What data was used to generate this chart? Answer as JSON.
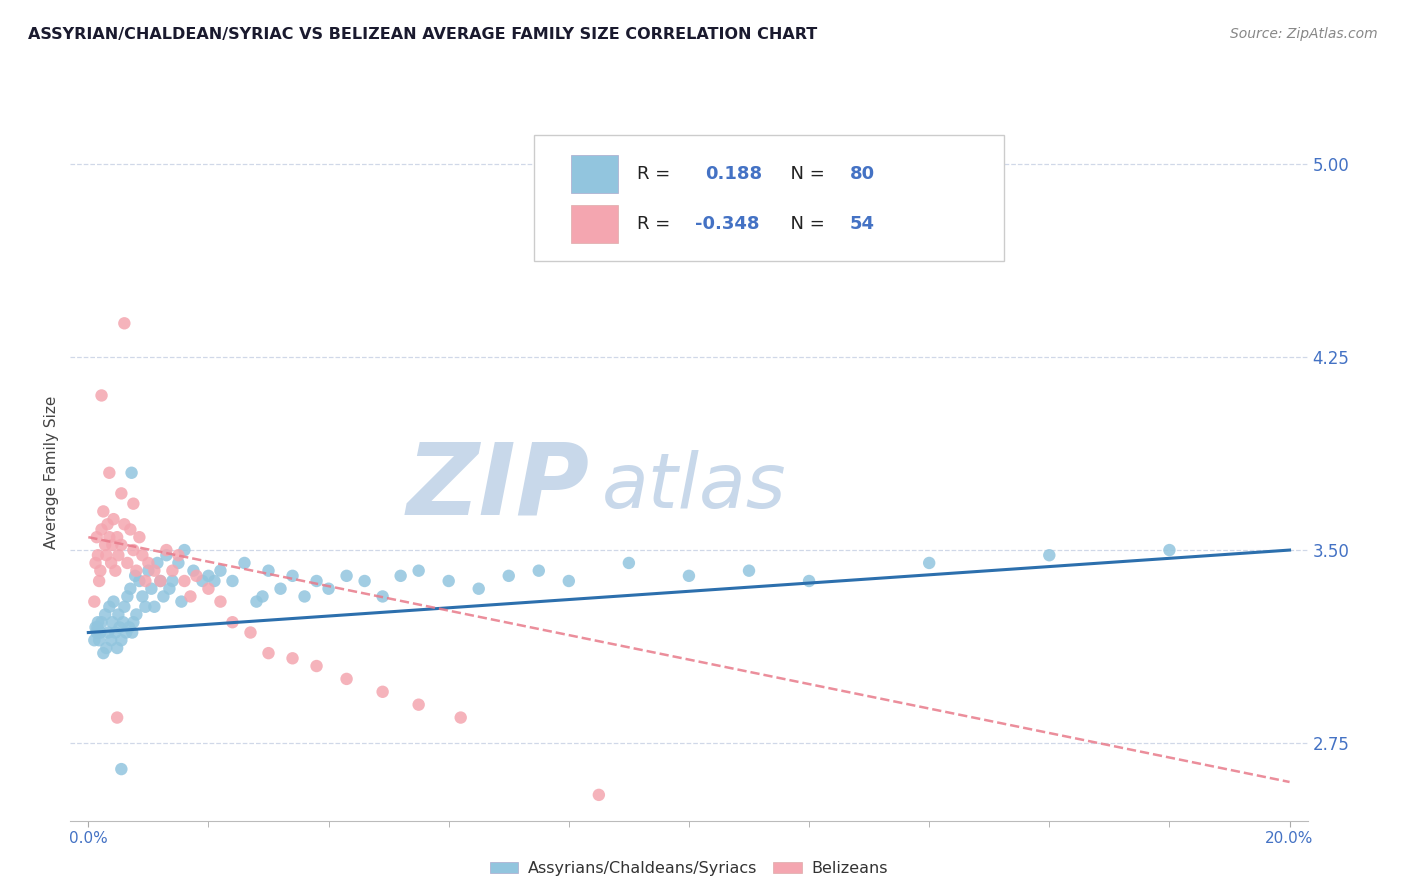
{
  "title": "ASSYRIAN/CHALDEAN/SYRIAC VS BELIZEAN AVERAGE FAMILY SIZE CORRELATION CHART",
  "source": "Source: ZipAtlas.com",
  "ylabel": "Average Family Size",
  "xlabel_ticks": [
    "0.0%",
    "20.0%"
  ],
  "xlabel_vals": [
    0.0,
    20.0
  ],
  "xlim": [
    -0.3,
    20.3
  ],
  "ylim": [
    2.45,
    5.15
  ],
  "yticks": [
    2.75,
    3.5,
    4.25,
    5.0
  ],
  "legend_blue_r": "0.188",
  "legend_blue_n": "80",
  "legend_pink_r": "-0.348",
  "legend_pink_n": "54",
  "legend_label_blue": "Assyrians/Chaldeans/Syriacs",
  "legend_label_pink": "Belizeans",
  "blue_color": "#92c5de",
  "pink_color": "#f4a6b0",
  "blue_line_color": "#2c6fad",
  "pink_line_color": "#e87a8a",
  "watermark_zip": "ZIP",
  "watermark_atlas": "atlas",
  "watermark_color": "#c8d8ea",
  "title_color": "#1a1a2e",
  "axis_tick_color": "#4472c4",
  "grid_color": "#d0d8e8",
  "blue_scatter_x": [
    0.15,
    0.18,
    0.2,
    0.22,
    0.25,
    0.28,
    0.3,
    0.33,
    0.35,
    0.38,
    0.4,
    0.42,
    0.45,
    0.48,
    0.5,
    0.52,
    0.55,
    0.58,
    0.6,
    0.63,
    0.65,
    0.68,
    0.7,
    0.73,
    0.75,
    0.78,
    0.8,
    0.85,
    0.9,
    0.95,
    1.0,
    1.05,
    1.1,
    1.15,
    1.2,
    1.25,
    1.3,
    1.4,
    1.5,
    1.6,
    1.75,
    1.9,
    2.0,
    2.2,
    2.4,
    2.6,
    2.8,
    3.0,
    3.2,
    3.4,
    3.6,
    3.8,
    4.0,
    4.3,
    4.6,
    4.9,
    5.2,
    5.5,
    6.0,
    6.5,
    7.0,
    7.5,
    8.0,
    9.0,
    10.0,
    11.0,
    12.0,
    14.0,
    16.0,
    18.0,
    0.1,
    0.12,
    0.14,
    0.16,
    1.35,
    1.55,
    2.1,
    2.9,
    0.72,
    0.55
  ],
  "blue_scatter_y": [
    3.2,
    3.15,
    3.18,
    3.22,
    3.1,
    3.25,
    3.12,
    3.18,
    3.28,
    3.15,
    3.22,
    3.3,
    3.18,
    3.12,
    3.25,
    3.2,
    3.15,
    3.22,
    3.28,
    3.18,
    3.32,
    3.2,
    3.35,
    3.18,
    3.22,
    3.4,
    3.25,
    3.38,
    3.32,
    3.28,
    3.42,
    3.35,
    3.28,
    3.45,
    3.38,
    3.32,
    3.48,
    3.38,
    3.45,
    3.5,
    3.42,
    3.38,
    3.4,
    3.42,
    3.38,
    3.45,
    3.3,
    3.42,
    3.35,
    3.4,
    3.32,
    3.38,
    3.35,
    3.4,
    3.38,
    3.32,
    3.4,
    3.42,
    3.38,
    3.35,
    3.4,
    3.42,
    3.38,
    3.45,
    3.4,
    3.42,
    3.38,
    3.45,
    3.48,
    3.5,
    3.15,
    3.2,
    3.18,
    3.22,
    3.35,
    3.3,
    3.38,
    3.32,
    3.8,
    2.65
  ],
  "pink_scatter_x": [
    0.1,
    0.12,
    0.14,
    0.16,
    0.18,
    0.2,
    0.22,
    0.25,
    0.28,
    0.3,
    0.32,
    0.35,
    0.38,
    0.4,
    0.42,
    0.45,
    0.48,
    0.5,
    0.55,
    0.6,
    0.65,
    0.7,
    0.75,
    0.8,
    0.85,
    0.9,
    0.95,
    1.0,
    1.1,
    1.2,
    1.3,
    1.4,
    1.5,
    1.6,
    1.7,
    1.8,
    2.0,
    2.2,
    2.4,
    2.7,
    3.0,
    3.4,
    3.8,
    4.3,
    4.9,
    5.5,
    6.2,
    0.35,
    0.55,
    0.75,
    0.22,
    0.6,
    0.48,
    8.5
  ],
  "pink_scatter_y": [
    3.3,
    3.45,
    3.55,
    3.48,
    3.38,
    3.42,
    3.58,
    3.65,
    3.52,
    3.48,
    3.6,
    3.55,
    3.45,
    3.52,
    3.62,
    3.42,
    3.55,
    3.48,
    3.52,
    3.6,
    3.45,
    3.58,
    3.5,
    3.42,
    3.55,
    3.48,
    3.38,
    3.45,
    3.42,
    3.38,
    3.5,
    3.42,
    3.48,
    3.38,
    3.32,
    3.4,
    3.35,
    3.3,
    3.22,
    3.18,
    3.1,
    3.08,
    3.05,
    3.0,
    2.95,
    2.9,
    2.85,
    3.8,
    3.72,
    3.68,
    4.1,
    4.38,
    2.85,
    2.55
  ],
  "blue_line_y_start": 3.18,
  "blue_line_y_end": 3.5,
  "pink_line_y_start": 3.55,
  "pink_line_y_end": 2.6
}
